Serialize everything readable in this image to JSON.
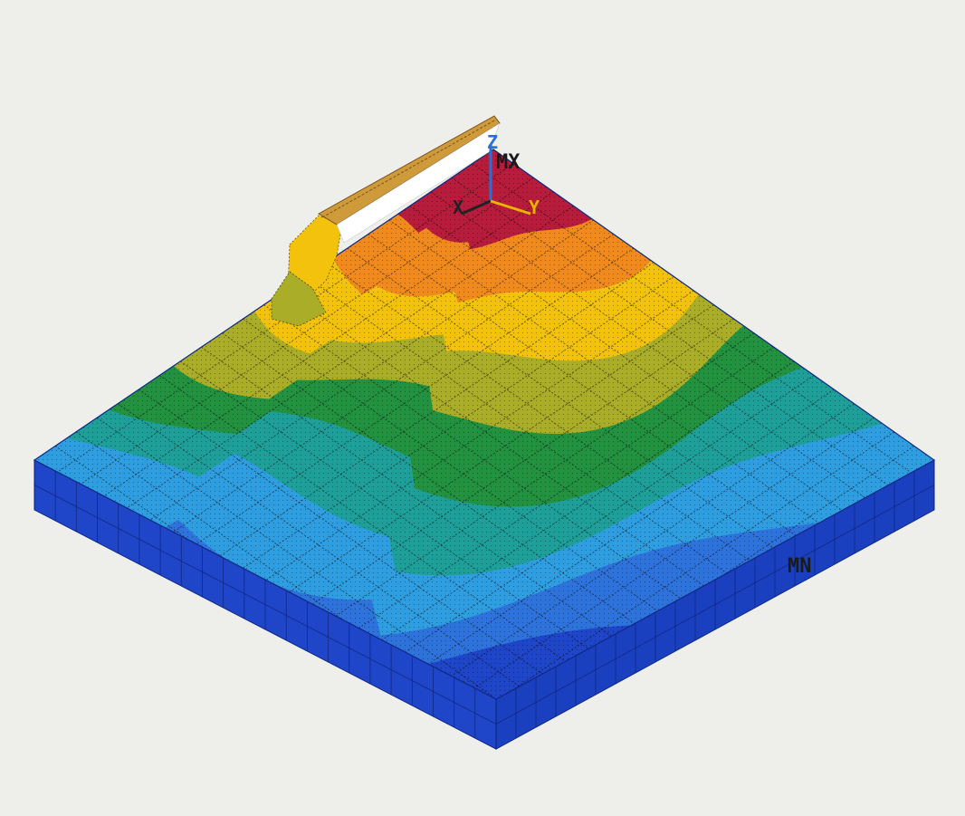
{
  "plot": {
    "max_label": "MX",
    "min_label": "MN"
  },
  "triad": {
    "z_label": "Z",
    "x_label": "X",
    "y_label": "Y",
    "z_color": "#2a6fd6",
    "x_color": "#222222",
    "y_color": "#e8b400"
  },
  "contour_colors": [
    "#1f45c8",
    "#2e73dc",
    "#2f9ee0",
    "#1f9f9a",
    "#229140",
    "#a9ad27",
    "#f2c20c",
    "#f08a1c",
    "#b71c3c"
  ],
  "background_color": "#eeeeea",
  "beam_color": "#cf9a3a"
}
